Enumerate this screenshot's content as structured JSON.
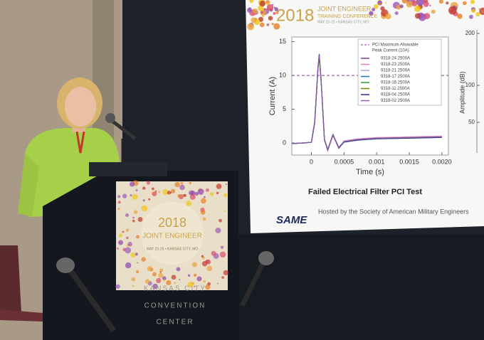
{
  "slide": {
    "header": {
      "year": "2018",
      "line1": "JOINT ENGINEER",
      "line2": "TRAINING CONFERENCE",
      "line3": "MAY 23-25 • KANSAS CITY, MO"
    },
    "chart": {
      "type": "line",
      "ylabel": "Current (A)",
      "xlabel": "Time (s)",
      "xlim": [
        -0.0003,
        0.0021
      ],
      "ylim": [
        -1.8,
        15.7
      ],
      "xticks": [
        0,
        0.0005,
        0.001,
        0.0015,
        {
          "value": 0.002,
          "label": "0.0020"
        }
      ],
      "yticks": [
        0,
        5,
        10,
        15
      ],
      "threshold": 10,
      "threshold_label": [
        "PCI Maximum Allowable",
        "Peak Current (10A)"
      ],
      "threshold_color": "#8e3a8e",
      "x": [
        -0.0003,
        -0.0001,
        0,
        5e-05,
        0.0001,
        0.00012,
        0.00015,
        0.0002,
        0.00025,
        0.00033,
        0.00042,
        0.0005,
        0.0007,
        0.001,
        0.0015,
        0.002
      ],
      "series": [
        {
          "name": "9318-24 2500A",
          "color": "#7b3fa0",
          "values": [
            -0.1,
            0,
            0.1,
            3,
            11,
            13,
            9,
            0.5,
            -1,
            1.2,
            -0.7,
            0.2,
            0.5,
            0.7,
            0.8,
            0.9
          ]
        },
        {
          "name": "9318-23 2500A",
          "color": "#e377c2",
          "values": [
            -0.1,
            0,
            0.1,
            3.2,
            11.2,
            12.8,
            8.8,
            0.4,
            -1.1,
            1.1,
            -0.8,
            0.3,
            0.6,
            0.8,
            0.9,
            1
          ]
        },
        {
          "name": "9318-21 2500A",
          "color": "#b39ddb",
          "values": [
            -0.1,
            0,
            0.1,
            2.8,
            10.8,
            12.9,
            9.2,
            0.6,
            -0.9,
            1.3,
            -0.6,
            0.2,
            0.5,
            0.7,
            0.8,
            0.9
          ]
        },
        {
          "name": "9318-17 2500A",
          "color": "#1f77b4",
          "values": [
            -0.1,
            0,
            0.1,
            3,
            11,
            13.2,
            9,
            0.5,
            -1,
            1.2,
            -0.7,
            0.2,
            0.4,
            0.6,
            0.7,
            0.8
          ]
        },
        {
          "name": "9318-16 2500A",
          "color": "#2ca02c",
          "values": [
            -0.1,
            0,
            0.1,
            3.1,
            11.1,
            13,
            9.1,
            0.5,
            -1,
            1.2,
            -0.7,
            0.2,
            0.5,
            0.7,
            0.8,
            0.9
          ]
        },
        {
          "name": "9318-11 2500A",
          "color": "#808000",
          "values": [
            -0.1,
            0,
            0.1,
            2.9,
            10.9,
            12.7,
            8.9,
            0.5,
            -1,
            1.1,
            -0.7,
            0.2,
            0.5,
            0.7,
            0.8,
            0.9
          ]
        },
        {
          "name": "9318-04 2500A",
          "color": "#2b2b8f",
          "values": [
            -0.1,
            0,
            0.1,
            3,
            11,
            13.1,
            9,
            0.5,
            -1.1,
            1.2,
            -0.8,
            0.1,
            0.4,
            0.6,
            0.7,
            0.8
          ]
        },
        {
          "name": "9318-02 2500A",
          "color": "#9b59b6",
          "values": [
            -0.1,
            0,
            0.1,
            3,
            11.1,
            13,
            9,
            0.5,
            -1,
            1.2,
            -0.7,
            0.2,
            0.5,
            0.7,
            0.8,
            0.9
          ]
        }
      ]
    },
    "side_chart": {
      "ylabel": "Amplitude (dB)",
      "yticks": [
        200,
        100,
        50
      ]
    },
    "caption": "Failed Electrical Filter PCI Test",
    "logo": "SAME",
    "footer": "Hosted by the Society of American Military Engineers"
  },
  "podium": {
    "year": "2018",
    "line1": "JOINT ENGINEER",
    "line2": "MAY 23-25 • KANSAS CITY, MO",
    "venue": [
      "KANSAS CITY",
      "CONVENTION",
      "CENTER"
    ]
  }
}
